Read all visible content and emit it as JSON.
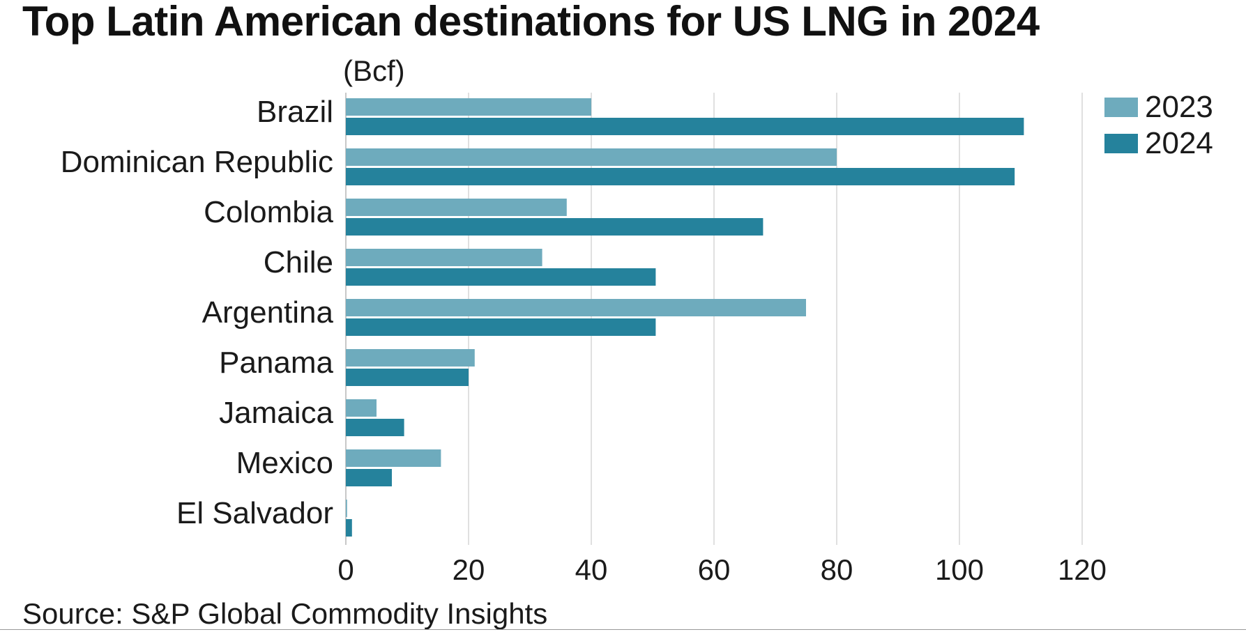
{
  "chart_data": {
    "type": "bar",
    "orientation": "horizontal",
    "title": "Top Latin American destinations for US LNG in 2024",
    "unit_label": "(Bcf)",
    "source": "Source: S&P Global Commodity Insights",
    "categories": [
      "Brazil",
      "Dominican Republic",
      "Colombia",
      "Chile",
      "Argentina",
      "Panama",
      "Jamaica",
      "Mexico",
      "El Salvador"
    ],
    "series": [
      {
        "name": "2023",
        "color": "#6eabbd",
        "values": [
          40,
          80,
          36,
          32,
          75,
          21,
          5,
          15.5,
          0.2
        ]
      },
      {
        "name": "2024",
        "color": "#25829c",
        "values": [
          110.5,
          109,
          68,
          50.5,
          50.5,
          20,
          9.5,
          7.5,
          1
        ]
      }
    ],
    "xlim": [
      0,
      120
    ],
    "xticks": [
      0,
      20,
      40,
      60,
      80,
      100,
      120
    ],
    "grid": true,
    "legend_position": "top-right"
  }
}
